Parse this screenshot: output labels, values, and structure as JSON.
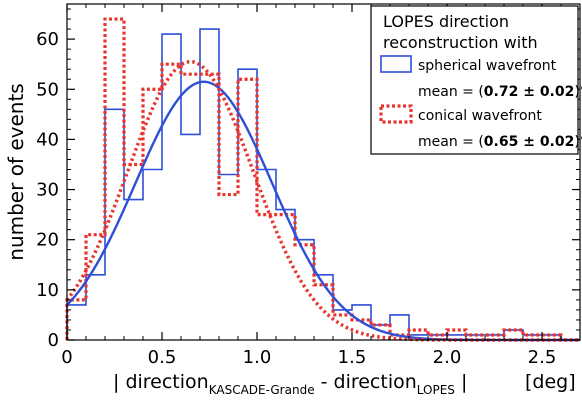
{
  "chart_data": {
    "type": "histogram",
    "xlim": [
      0,
      2.7
    ],
    "ylim": [
      0,
      67
    ],
    "x_ticks": [
      0,
      0.5,
      1.0,
      1.5,
      2.0,
      2.5
    ],
    "x_tick_labels": [
      "0",
      "0.5",
      "1.0",
      "1.5",
      "2.0",
      "2.5"
    ],
    "y_ticks": [
      0,
      10,
      20,
      30,
      40,
      50,
      60
    ],
    "y_tick_labels": [
      "0",
      "10",
      "20",
      "30",
      "40",
      "50",
      "60"
    ],
    "ylabel": "number of events",
    "xlabel": {
      "part1": "| direction",
      "sub1": "KASCADE-Grande",
      "part2": " - direction",
      "sub2": "LOPES",
      "part3": " |",
      "unit": "[deg]"
    },
    "bin_width": 0.1,
    "bin_edges_start": 0,
    "series": [
      {
        "name": "spherical wavefront",
        "color": "#2e4fd8",
        "style": "solid",
        "mean_prefix": "mean = (",
        "mean_value": "0.72 ± 0.02",
        "mean_suffix": ")°",
        "hist": [
          7,
          13,
          46,
          28,
          34,
          61,
          41,
          62,
          33,
          54,
          34,
          26,
          20,
          13,
          6,
          7,
          3,
          5,
          1,
          1,
          1,
          1,
          1,
          2,
          1,
          1,
          0
        ],
        "fit": {
          "amplitude": 51.5,
          "center": 0.72,
          "sigma": 0.36
        }
      },
      {
        "name": "conical wavefront",
        "color": "#e8342c",
        "style": "dotted",
        "mean_prefix": "mean = (",
        "mean_value": "0.65 ± 0.02",
        "mean_suffix": ")°",
        "hist": [
          8,
          21,
          64,
          35,
          50,
          55,
          53,
          53,
          29,
          52,
          25,
          25,
          19,
          11,
          5,
          4,
          3,
          1,
          2,
          1,
          2,
          1,
          1,
          2,
          1,
          1,
          0
        ],
        "fit": {
          "amplitude": 55.5,
          "center": 0.65,
          "sigma": 0.33
        }
      }
    ],
    "legend": {
      "title_line1": "LOPES direction",
      "title_line2": "reconstruction with",
      "placement": "top-right"
    }
  }
}
